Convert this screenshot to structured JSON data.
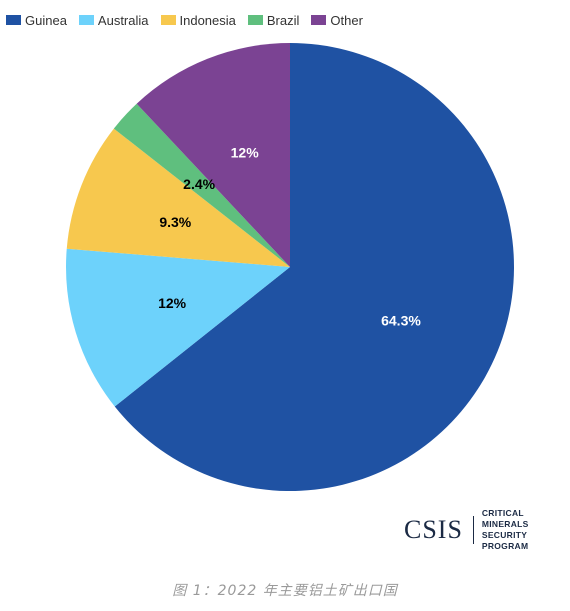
{
  "chart_data": {
    "type": "pie",
    "categories": [
      "Guinea",
      "Australia",
      "Indonesia",
      "Brazil",
      "Other"
    ],
    "values": [
      64.3,
      12,
      9.3,
      2.4,
      12
    ],
    "labels": [
      "64.3%",
      "12%",
      "9.3%",
      "2.4%",
      "12%"
    ],
    "colors": [
      "#1f52a3",
      "#6dd2fb",
      "#f7c84e",
      "#5fbf7e",
      "#7b4393"
    ],
    "label_colors": [
      "#ffffff",
      "#000000",
      "#000000",
      "#000000",
      "#ffffff"
    ],
    "legend": {
      "position": "top-left"
    },
    "start": "top",
    "direction": "clockwise"
  },
  "logo": {
    "name": "CSIS",
    "subtitle_line1": "CRITICAL MINERALS",
    "subtitle_line2": "SECURITY PROGRAM"
  },
  "caption": "图 1：2022 年主要铝土矿出口国"
}
